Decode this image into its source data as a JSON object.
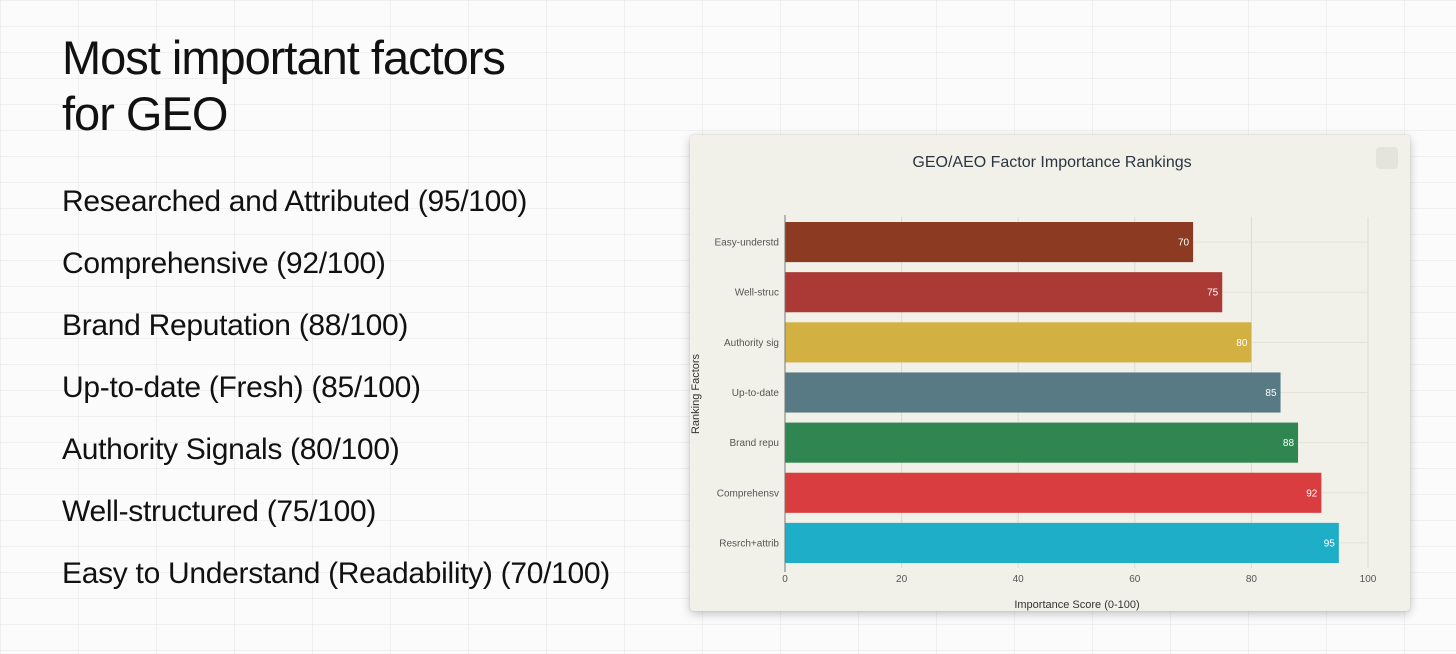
{
  "slide": {
    "title_line1": "Most important factors",
    "title_line2": "for GEO",
    "factors": [
      "Researched and Attributed (95/100)",
      "Comprehensive (92/100)",
      "Brand Reputation (88/100)",
      "Up-to-date (Fresh) (85/100)",
      "Authority Signals (80/100)",
      "Well-structured (75/100)",
      "Easy to Understand (Readability) (70/100)"
    ]
  },
  "chart_data": {
    "type": "bar",
    "orientation": "horizontal",
    "title": "GEO/AEO Factor Importance Rankings",
    "xlabel": "Importance Score (0-100)",
    "ylabel": "Ranking Factors",
    "xlim": [
      0,
      100
    ],
    "xticks": [
      0,
      20,
      40,
      60,
      80,
      100
    ],
    "grid": true,
    "categories": [
      "Easy-understd",
      "Well-struc",
      "Authority sig",
      "Up-to-date",
      "Brand repu",
      "Comprehensv",
      "Resrch+attrib"
    ],
    "values": [
      70,
      75,
      80,
      85,
      88,
      92,
      95
    ],
    "colors": [
      "#8c3a22",
      "#ab3a37",
      "#d2b042",
      "#577a85",
      "#2f8650",
      "#d93d3f",
      "#1eaec8"
    ]
  }
}
